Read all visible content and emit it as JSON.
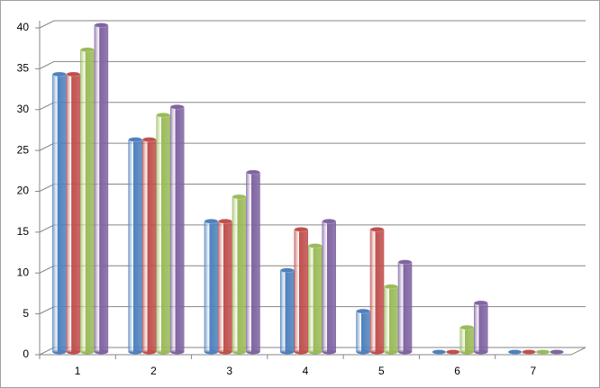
{
  "chart_data": {
    "type": "bar",
    "categories": [
      "1",
      "2",
      "3",
      "4",
      "5",
      "6",
      "7"
    ],
    "series": [
      {
        "color": "#4f81bd",
        "values": [
          34,
          26,
          16,
          10,
          5,
          0,
          0
        ]
      },
      {
        "color": "#c0504d",
        "values": [
          34,
          26,
          16,
          15,
          15,
          0,
          0
        ]
      },
      {
        "color": "#9bbb59",
        "values": [
          37,
          29,
          19,
          13,
          8,
          3,
          0
        ]
      },
      {
        "color": "#8064a2",
        "values": [
          40,
          30,
          22,
          16,
          11,
          6,
          0
        ]
      }
    ],
    "ylim": [
      0,
      40
    ],
    "yticks": [
      0,
      5,
      10,
      15,
      20,
      25,
      30,
      35,
      40
    ],
    "grid": true
  }
}
